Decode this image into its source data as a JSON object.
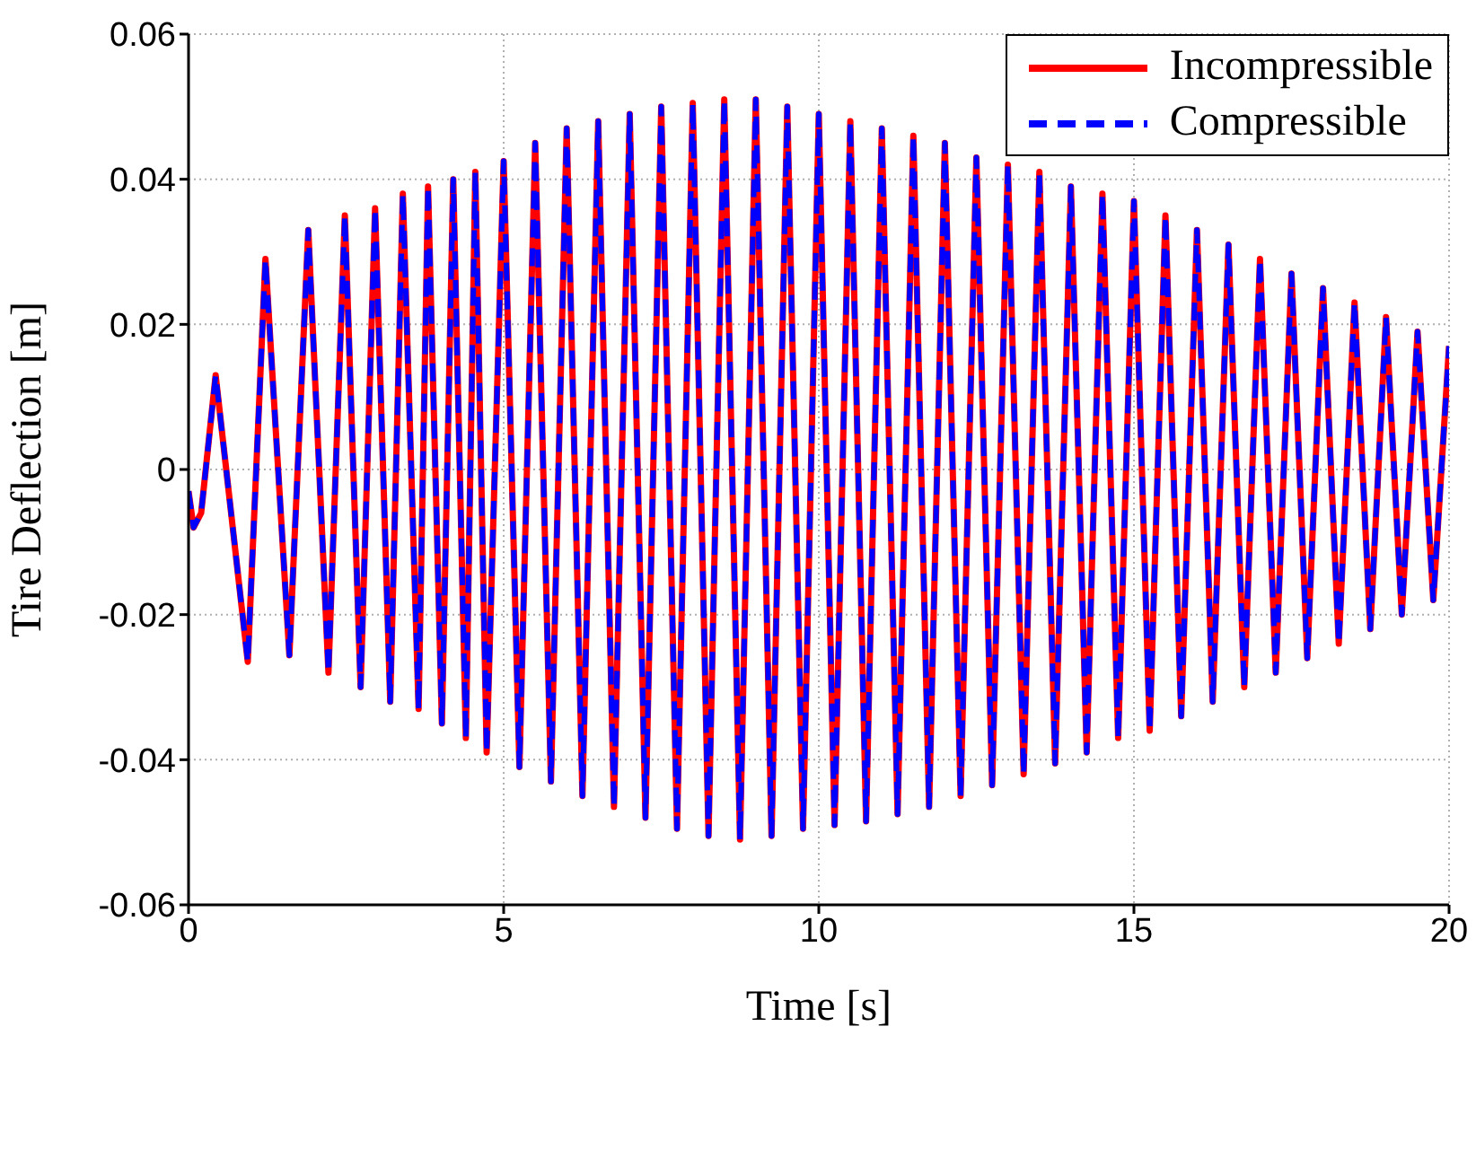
{
  "chart_data": {
    "type": "line",
    "xlabel": "Time [s]",
    "ylabel": "Tire Deflection [m]",
    "x": [
      0,
      0.08,
      0.2,
      0.43,
      0.94,
      1.22,
      1.6,
      1.9,
      2.22,
      2.48,
      2.73,
      2.96,
      3.2,
      3.4,
      3.65,
      3.8,
      4.02,
      4.2,
      4.4,
      4.55,
      4.73,
      5,
      5.25,
      5.5,
      5.75,
      6,
      6.25,
      6.5,
      6.75,
      7,
      7.25,
      7.5,
      7.75,
      8,
      8.25,
      8.5,
      8.75,
      9,
      9.25,
      9.5,
      9.75,
      10,
      10.25,
      10.5,
      10.75,
      11,
      11.25,
      11.5,
      11.75,
      12,
      12.25,
      12.5,
      12.75,
      13,
      13.25,
      13.5,
      13.75,
      14,
      14.25,
      14.5,
      14.75,
      15,
      15.25,
      15.5,
      15.75,
      16,
      16.25,
      16.5,
      16.75,
      17,
      17.25,
      17.5,
      17.75,
      18,
      18.25,
      18.5,
      18.75,
      19,
      19.25,
      19.5,
      19.75,
      20
    ],
    "series": [
      {
        "name": "Incompressible",
        "color": "#ff0000",
        "line_style": "solid",
        "values": [
          -0.003,
          -0.008,
          -0.006,
          0.013,
          -0.0265,
          0.029,
          -0.0256,
          0.033,
          -0.028,
          0.035,
          -0.03,
          0.036,
          -0.032,
          0.038,
          -0.033,
          0.039,
          -0.035,
          0.04,
          -0.037,
          0.041,
          -0.039,
          0.0425,
          -0.041,
          0.045,
          -0.043,
          0.047,
          -0.045,
          0.048,
          -0.0465,
          0.049,
          -0.048,
          0.05,
          -0.0495,
          0.0505,
          -0.0505,
          0.051,
          -0.051,
          0.051,
          -0.0505,
          0.05,
          -0.0495,
          0.049,
          -0.049,
          0.048,
          -0.0485,
          0.047,
          -0.0475,
          0.046,
          -0.0465,
          0.045,
          -0.045,
          0.043,
          -0.0435,
          0.042,
          -0.042,
          0.041,
          -0.0405,
          0.039,
          -0.039,
          0.038,
          -0.037,
          0.037,
          -0.036,
          0.035,
          -0.034,
          0.033,
          -0.032,
          0.031,
          -0.03,
          0.029,
          -0.028,
          0.027,
          -0.026,
          0.025,
          -0.024,
          0.023,
          -0.022,
          0.021,
          -0.02,
          0.019,
          -0.018,
          0.017
        ]
      },
      {
        "name": "Compressible",
        "color": "#0000ff",
        "line_style": "dashed",
        "values": [
          -0.003,
          -0.008,
          -0.006,
          0.013,
          -0.0265,
          0.029,
          -0.0256,
          0.033,
          -0.028,
          0.035,
          -0.03,
          0.036,
          -0.032,
          0.038,
          -0.033,
          0.039,
          -0.035,
          0.04,
          -0.037,
          0.041,
          -0.039,
          0.0425,
          -0.041,
          0.045,
          -0.043,
          0.047,
          -0.045,
          0.048,
          -0.0465,
          0.049,
          -0.048,
          0.05,
          -0.0495,
          0.0505,
          -0.0505,
          0.051,
          -0.051,
          0.051,
          -0.0505,
          0.05,
          -0.0495,
          0.049,
          -0.049,
          0.048,
          -0.0485,
          0.047,
          -0.0475,
          0.046,
          -0.0465,
          0.045,
          -0.045,
          0.043,
          -0.0435,
          0.042,
          -0.042,
          0.041,
          -0.0405,
          0.039,
          -0.039,
          0.038,
          -0.037,
          0.037,
          -0.036,
          0.035,
          -0.034,
          0.033,
          -0.032,
          0.031,
          -0.03,
          0.029,
          -0.028,
          0.027,
          -0.026,
          0.025,
          -0.024,
          0.023,
          -0.022,
          0.021,
          -0.02,
          0.019,
          -0.018,
          0.017
        ]
      }
    ],
    "xlim": [
      0,
      20
    ],
    "xticks": [
      0,
      5,
      10,
      15,
      20
    ],
    "ylim": [
      -0.06,
      0.06
    ],
    "yticks": [
      -0.06,
      -0.04,
      -0.02,
      0,
      0.02,
      0.04,
      0.06
    ],
    "grid": true,
    "legend": "top right"
  }
}
